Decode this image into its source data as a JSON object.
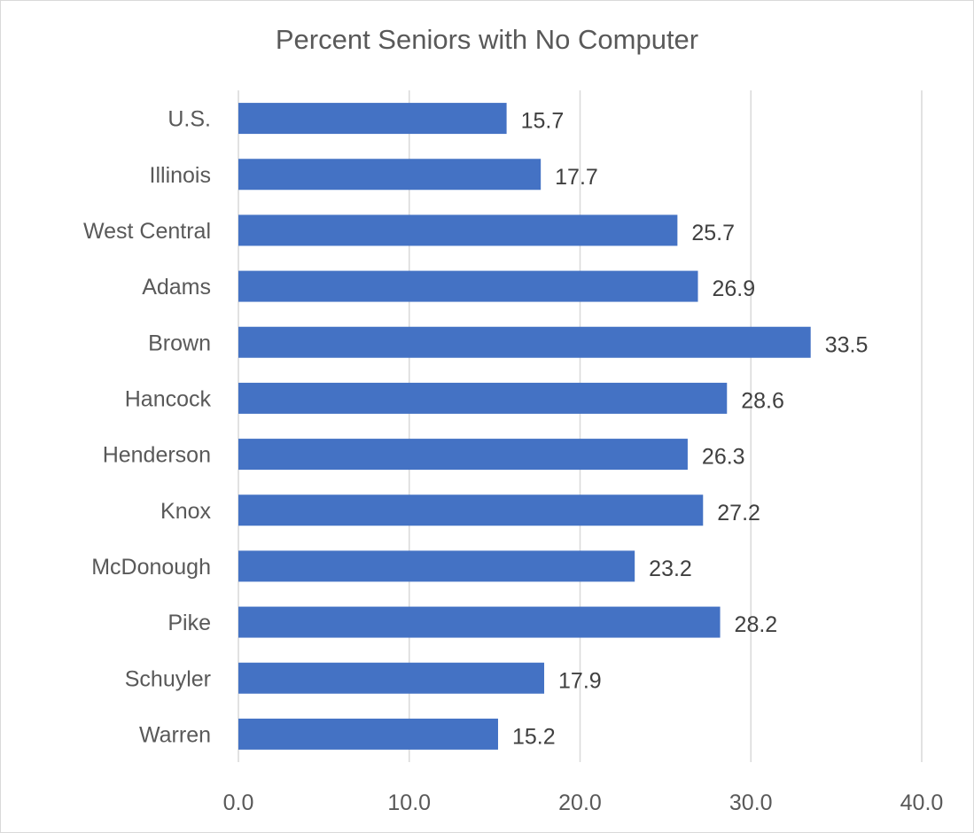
{
  "chart_data": {
    "type": "bar",
    "orientation": "horizontal",
    "title": "Percent Seniors with No Computer",
    "xlabel": "",
    "ylabel": "",
    "categories": [
      "U.S.",
      "Illinois",
      "West Central",
      "Adams",
      "Brown",
      "Hancock",
      "Henderson",
      "Knox",
      "McDonough",
      "Pike",
      "Schuyler",
      "Warren"
    ],
    "values": [
      15.7,
      17.7,
      25.7,
      26.9,
      33.5,
      28.6,
      26.3,
      27.2,
      23.2,
      28.2,
      17.9,
      15.2
    ],
    "data_labels": [
      "15.7",
      "17.7",
      "25.7",
      "26.9",
      "33.5",
      "28.6",
      "26.3",
      "27.2",
      "23.2",
      "28.2",
      "17.9",
      "15.2"
    ],
    "xlim": [
      0,
      40
    ],
    "xticks": [
      "0.0",
      "10.0",
      "20.0",
      "30.0",
      "40.0"
    ],
    "grid": "vertical",
    "legend": "none",
    "bar_color": "#4472C4",
    "grid_color": "#d9d9d9"
  }
}
